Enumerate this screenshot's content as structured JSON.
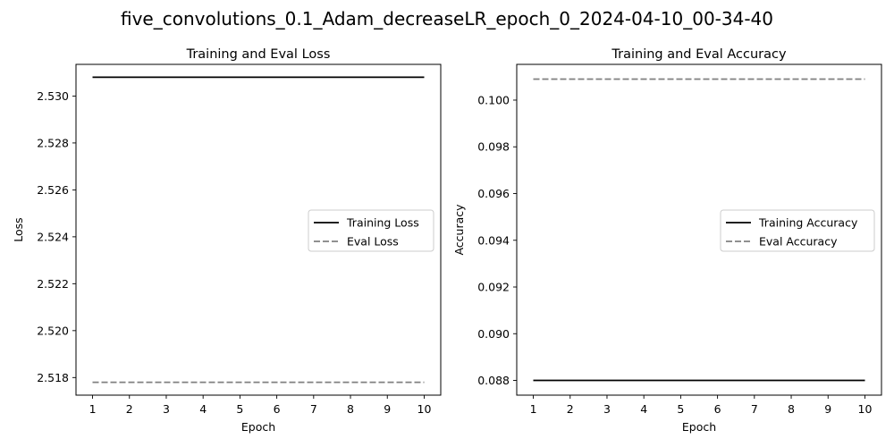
{
  "figure": {
    "title": "five_convolutions_0.1_Adam_decreaseLR_epoch_0_2024-04-10_00-34-40"
  },
  "chart_data": [
    {
      "type": "line",
      "title": "Training and Eval Loss",
      "xlabel": "Epoch",
      "ylabel": "Loss",
      "x": [
        1,
        2,
        3,
        4,
        5,
        6,
        7,
        8,
        9,
        10
      ],
      "xlim": [
        0.55,
        10.45
      ],
      "ylim": [
        2.51725,
        2.53135
      ],
      "yticks": [
        2.518,
        2.52,
        2.522,
        2.524,
        2.526,
        2.528,
        2.53
      ],
      "ytick_labels": [
        "2.518",
        "2.520",
        "2.522",
        "2.524",
        "2.526",
        "2.528",
        "2.530"
      ],
      "legend_position": "center-right",
      "series": [
        {
          "name": "Training Loss",
          "color": "#000000",
          "dash": "solid",
          "values": [
            2.5308,
            2.5308,
            2.5308,
            2.5308,
            2.5308,
            2.5308,
            2.5308,
            2.5308,
            2.5308,
            2.5308
          ]
        },
        {
          "name": "Eval Loss",
          "color": "#808080",
          "dash": "dashed",
          "values": [
            2.5178,
            2.5178,
            2.5178,
            2.5178,
            2.5178,
            2.5178,
            2.5178,
            2.5178,
            2.5178,
            2.5178
          ]
        }
      ]
    },
    {
      "type": "line",
      "title": "Training and Eval Accuracy",
      "xlabel": "Epoch",
      "ylabel": "Accuracy",
      "x": [
        1,
        2,
        3,
        4,
        5,
        6,
        7,
        8,
        9,
        10
      ],
      "xlim": [
        0.55,
        10.45
      ],
      "ylim": [
        0.08737,
        0.10153
      ],
      "yticks": [
        0.088,
        0.09,
        0.092,
        0.094,
        0.096,
        0.098,
        0.1
      ],
      "ytick_labels": [
        "0.088",
        "0.090",
        "0.092",
        "0.094",
        "0.096",
        "0.098",
        "0.100"
      ],
      "legend_position": "center-right",
      "series": [
        {
          "name": "Training Accuracy",
          "color": "#000000",
          "dash": "solid",
          "values": [
            0.088,
            0.088,
            0.088,
            0.088,
            0.088,
            0.088,
            0.088,
            0.088,
            0.088,
            0.088
          ]
        },
        {
          "name": "Eval Accuracy",
          "color": "#808080",
          "dash": "dashed",
          "values": [
            0.1009,
            0.1009,
            0.1009,
            0.1009,
            0.1009,
            0.1009,
            0.1009,
            0.1009,
            0.1009,
            0.1009
          ]
        }
      ]
    }
  ]
}
